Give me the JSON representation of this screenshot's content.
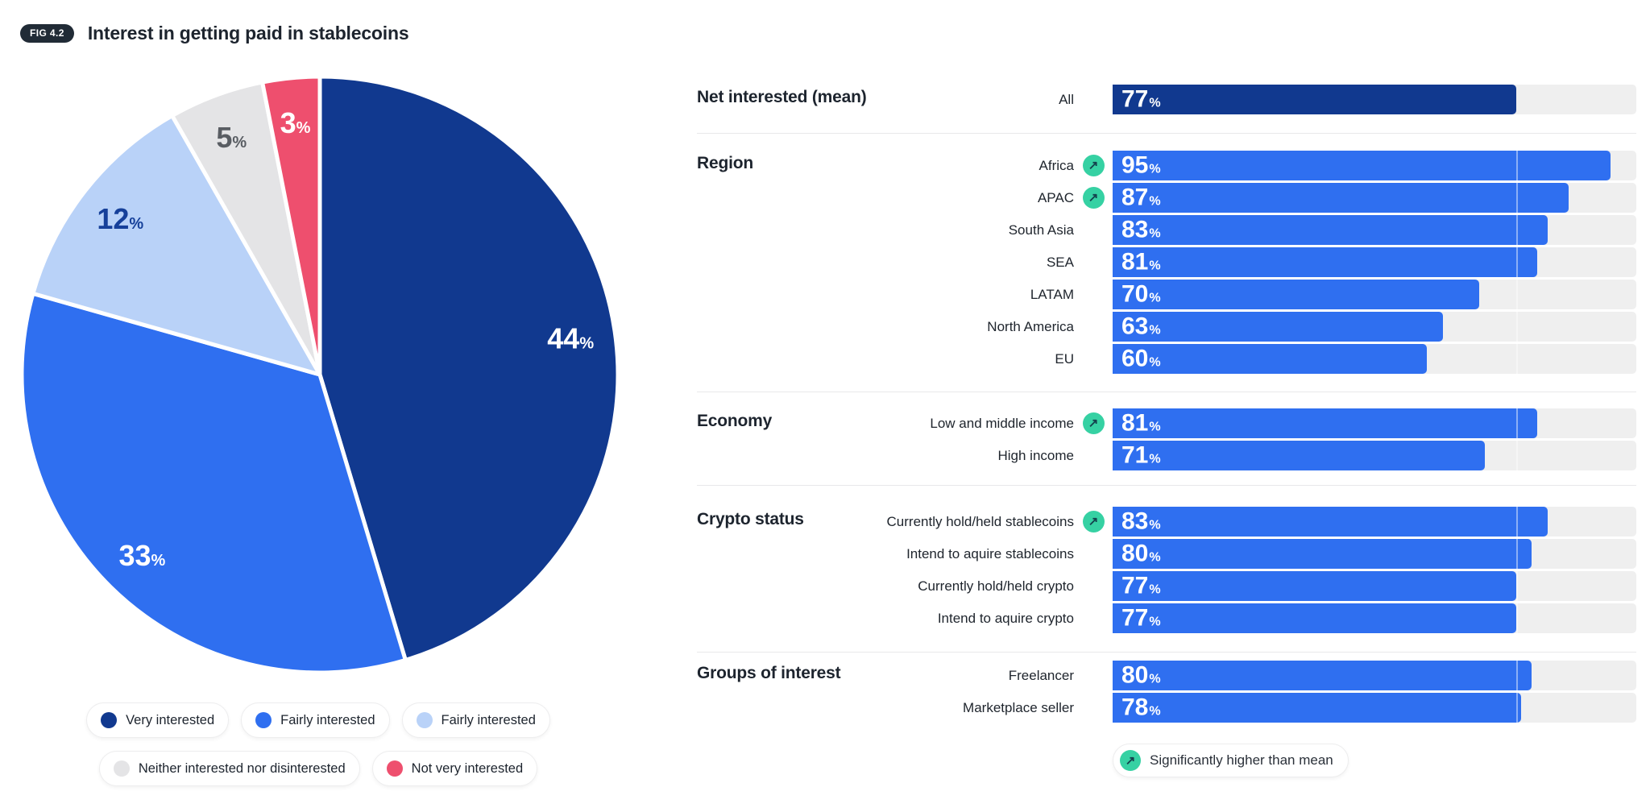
{
  "figure": {
    "badge": "FIG 4.2",
    "title": "Interest in getting paid in stablecoins"
  },
  "icons": {
    "significant_arrow": "↗"
  },
  "colors": {
    "navy": "#11398f",
    "accent_blue": "#2f6ff0",
    "light_blue": "#b9d2f8",
    "neutral_gray": "#e4e4e6",
    "red": "#ee4f6e",
    "green": "#36d1a3",
    "bar_track": "#efefef",
    "separator": "#e8e8ea",
    "text_dark": "#1d242e"
  },
  "chart_data": [
    {
      "type": "pie",
      "title": "Interest in getting paid in stablecoins",
      "unit": "%",
      "start_angle_deg": 0,
      "direction": "clockwise",
      "legend_position": "bottom",
      "slices": [
        {
          "label": "Very interested",
          "value": 44,
          "color": "#11398f",
          "text_color": "#ffffff"
        },
        {
          "label": "Fairly interested",
          "value": 33,
          "color": "#2f6ff0",
          "text_color": "#ffffff"
        },
        {
          "label": "Fairly interested",
          "value": 12,
          "color": "#b9d2f8",
          "text_color": "#16409a"
        },
        {
          "label": "Neither interested nor disinterested",
          "value": 5,
          "color": "#e4e4e6",
          "text_color": "#595d63"
        },
        {
          "label": "Not very interested",
          "value": 3,
          "color": "#ee4f6e",
          "text_color": "#ffffff"
        }
      ]
    },
    {
      "type": "bar",
      "orientation": "horizontal",
      "xlim": [
        0,
        100
      ],
      "unit": "%",
      "bar_color": "#2f6ff0",
      "track_color": "#efefef",
      "mean_line": {
        "value": 77,
        "visible": true
      },
      "sections": [
        {
          "header": "Net interested (mean)",
          "rows": [
            {
              "label": "All",
              "value": 77,
              "color": "#11398f",
              "is_mean": true
            }
          ]
        },
        {
          "header": "Region",
          "rows": [
            {
              "label": "Africa",
              "value": 95,
              "significant": true
            },
            {
              "label": "APAC",
              "value": 87,
              "significant": true
            },
            {
              "label": "South Asia",
              "value": 83
            },
            {
              "label": "SEA",
              "value": 81
            },
            {
              "label": "LATAM",
              "value": 70
            },
            {
              "label": "North America",
              "value": 63
            },
            {
              "label": "EU",
              "value": 60
            }
          ]
        },
        {
          "header": "Economy",
          "rows": [
            {
              "label": "Low and middle income",
              "value": 81,
              "significant": true
            },
            {
              "label": "High income",
              "value": 71
            }
          ]
        },
        {
          "header": "Crypto status",
          "rows": [
            {
              "label": "Currently hold/held stablecoins",
              "value": 83,
              "significant": true
            },
            {
              "label": "Intend to aquire stablecoins",
              "value": 80
            },
            {
              "label": "Currently hold/held crypto",
              "value": 77
            },
            {
              "label": "Intend to aquire crypto",
              "value": 77
            }
          ]
        },
        {
          "header": "Groups of interest",
          "rows": [
            {
              "label": "Freelancer",
              "value": 80
            },
            {
              "label": "Marketplace seller",
              "value": 78
            }
          ]
        }
      ],
      "footnote": "Significantly higher than mean"
    }
  ]
}
